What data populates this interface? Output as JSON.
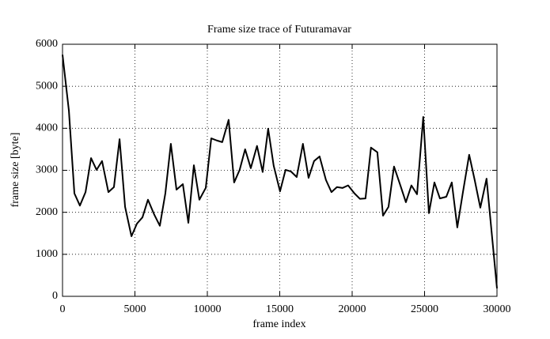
{
  "chart_data": {
    "type": "line",
    "title": "Frame size trace of Futuramavar",
    "x_label": "frame index",
    "y_label": "frame size [byte]",
    "xlim": [
      0,
      30000
    ],
    "ylim": [
      0,
      6000
    ],
    "xticks": [
      0,
      5000,
      10000,
      15000,
      20000,
      25000,
      30000
    ],
    "yticks": [
      0,
      1000,
      2000,
      3000,
      4000,
      5000,
      6000
    ],
    "grid": true,
    "series": [
      {
        "color": "#000000",
        "x": [
          0,
          440,
          820,
          1200,
          1590,
          1970,
          2350,
          2730,
          3170,
          3550,
          3940,
          4320,
          4760,
          5140,
          5520,
          5900,
          6340,
          6720,
          7100,
          7480,
          7870,
          8310,
          8690,
          9070,
          9450,
          9890,
          10270,
          10650,
          11030,
          11470,
          11850,
          12230,
          12610,
          13000,
          13430,
          13820,
          14200,
          14580,
          15020,
          15400,
          15780,
          16170,
          16600,
          16990,
          17370,
          17750,
          18190,
          18570,
          18950,
          19340,
          19720,
          20160,
          20540,
          20920,
          21300,
          21740,
          22130,
          22510,
          22890,
          23330,
          23710,
          24090,
          24480,
          24910,
          25300,
          25680,
          26060,
          26500,
          26880,
          27260,
          27650,
          28080,
          28460,
          28850,
          29280,
          30000
        ],
        "values": [
          5750,
          4420,
          2450,
          2160,
          2480,
          3290,
          3010,
          3220,
          2480,
          2600,
          3740,
          2130,
          1430,
          1730,
          1880,
          2300,
          1940,
          1680,
          2450,
          3630,
          2540,
          2670,
          1750,
          3120,
          2300,
          2580,
          3760,
          3710,
          3670,
          4200,
          2710,
          3010,
          3500,
          3050,
          3580,
          2960,
          3990,
          3110,
          2500,
          3010,
          2970,
          2840,
          3630,
          2820,
          3220,
          3330,
          2770,
          2480,
          2600,
          2580,
          2640,
          2450,
          2320,
          2330,
          3540,
          3430,
          1920,
          2130,
          3090,
          2640,
          2240,
          2640,
          2430,
          4270,
          1980,
          2710,
          2330,
          2370,
          2710,
          1640,
          2480,
          3370,
          2770,
          2110,
          2800,
          190
        ]
      }
    ]
  }
}
